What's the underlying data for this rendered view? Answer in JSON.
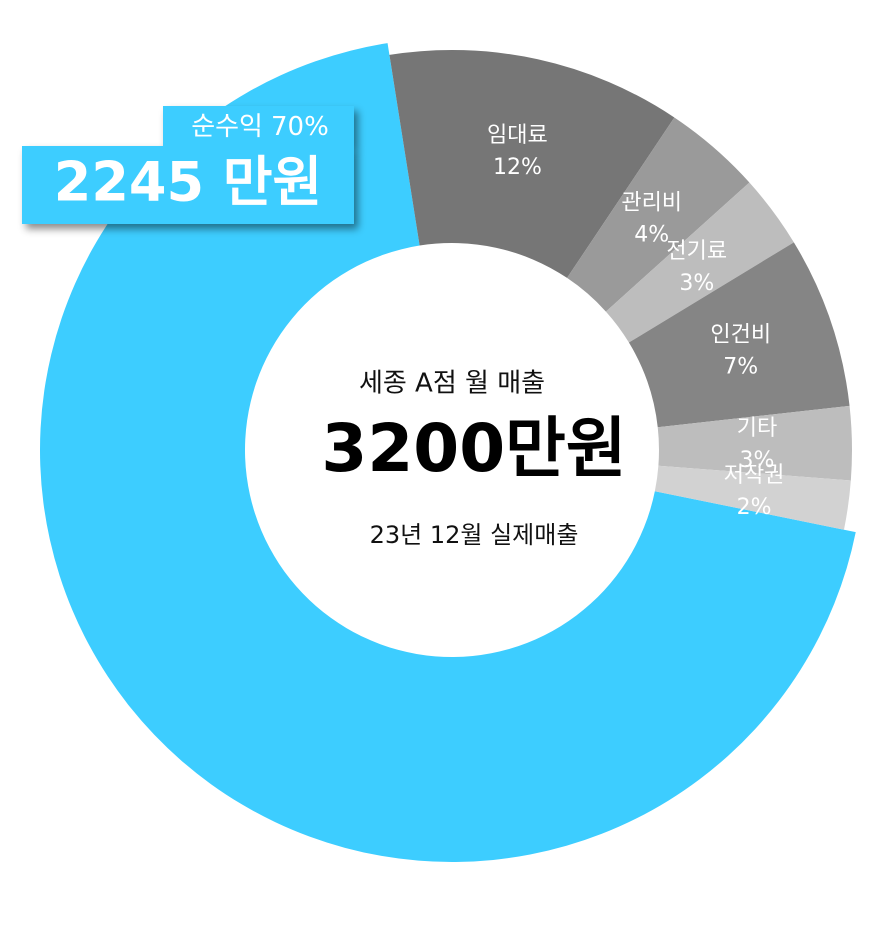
{
  "chart_data": {
    "type": "donut",
    "title": "세종 A점 월 매출",
    "center_text": "3200만원",
    "subtitle": "23년 12월 실제매출",
    "annotation": "2245 만원",
    "categories": [
      "순수익",
      "임대료",
      "관리비",
      "전기료",
      "인건비",
      "기타",
      "저작권"
    ],
    "values": [
      70,
      12,
      4,
      3,
      7,
      3,
      2
    ],
    "value_labels": [
      "70%",
      "12%",
      "4%",
      "3%",
      "7%",
      "3%",
      "2%"
    ],
    "colors": [
      "#3dcdff",
      "#767676",
      "#9a9a9a",
      "#bdbdbd",
      "#858585",
      "#bdbdbd",
      "#d2d2d2"
    ]
  }
}
